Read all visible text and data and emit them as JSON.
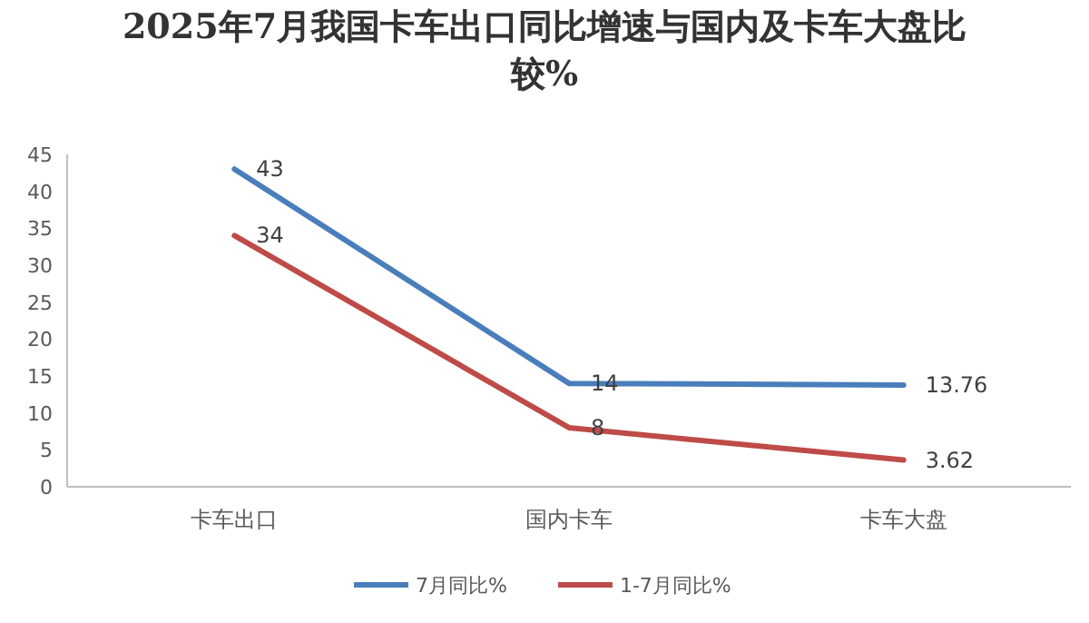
{
  "chart_data": {
    "type": "line",
    "title": "2025年7月我国卡车出口同比增速与国内及卡车大盘比较%",
    "categories": [
      "卡车出口",
      "国内卡车",
      "卡车大盘"
    ],
    "series": [
      {
        "name": "7月同比%",
        "color": "#4a7ebb",
        "values": [
          43,
          14,
          13.76
        ]
      },
      {
        "name": "1-7月同比%",
        "color": "#be4b48",
        "values": [
          34,
          8,
          3.62
        ]
      }
    ],
    "ylim": [
      0,
      45
    ],
    "yticks": [
      0,
      5,
      10,
      15,
      20,
      25,
      30,
      35,
      40,
      45
    ],
    "data_labels": true,
    "legend": "bottom"
  }
}
